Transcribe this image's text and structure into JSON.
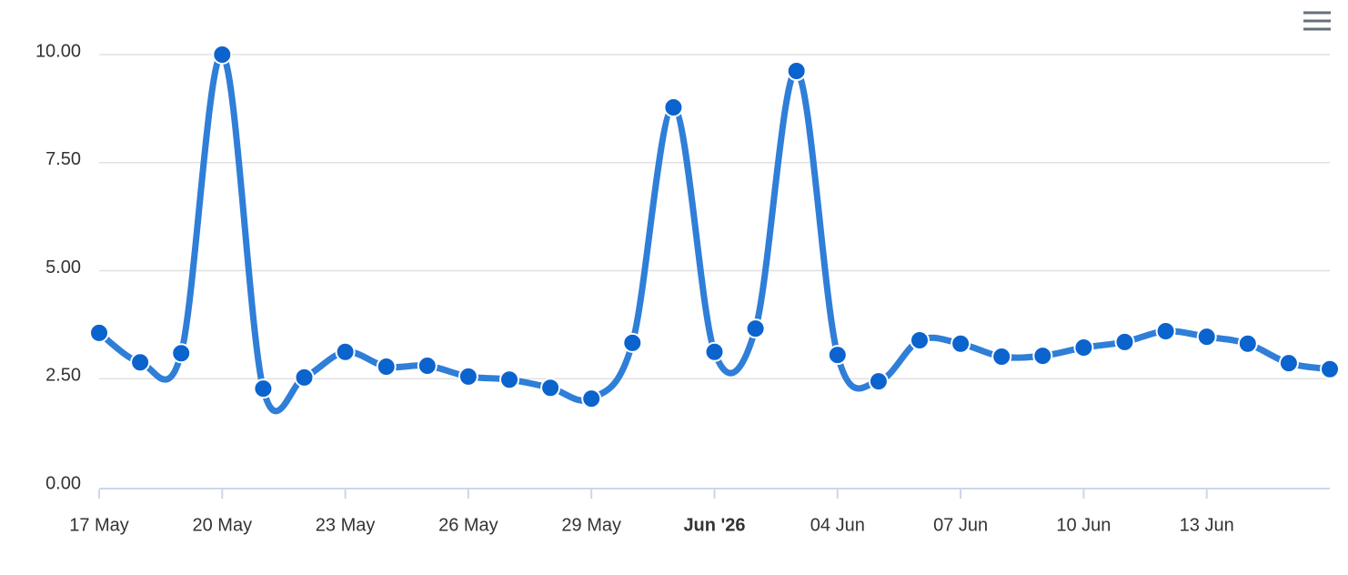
{
  "chart_data": {
    "type": "line",
    "x": [
      "2026-05-17",
      "2026-05-18",
      "2026-05-19",
      "2026-05-20",
      "2026-05-21",
      "2026-05-22",
      "2026-05-23",
      "2026-05-24",
      "2026-05-25",
      "2026-05-26",
      "2026-05-27",
      "2026-05-28",
      "2026-05-29",
      "2026-05-30",
      "2026-05-31",
      "2026-06-01",
      "2026-06-02",
      "2026-06-03",
      "2026-06-04",
      "2026-06-05",
      "2026-06-06",
      "2026-06-07",
      "2026-06-08",
      "2026-06-09",
      "2026-06-10",
      "2026-06-11",
      "2026-06-12",
      "2026-06-13",
      "2026-06-14",
      "2026-06-15",
      "2026-06-16"
    ],
    "series": [
      {
        "color": "#2f7ed8",
        "marker_color": "#0b63ce",
        "values": [
          3.56,
          2.88,
          3.09,
          10.0,
          2.27,
          2.53,
          3.12,
          2.78,
          2.8,
          2.55,
          2.48,
          2.29,
          2.04,
          3.33,
          8.78,
          3.12,
          3.66,
          9.62,
          3.05,
          2.44,
          3.39,
          3.31,
          3.01,
          3.03,
          3.22,
          3.35,
          3.6,
          3.47,
          3.31,
          2.86,
          2.72
        ]
      }
    ],
    "xlim": [
      "2026-05-17",
      "2026-06-16"
    ],
    "xticks": [
      {
        "value": "2026-05-17",
        "label": "17 May"
      },
      {
        "value": "2026-05-20",
        "label": "20 May"
      },
      {
        "value": "2026-05-23",
        "label": "23 May"
      },
      {
        "value": "2026-05-26",
        "label": "26 May"
      },
      {
        "value": "2026-05-29",
        "label": "29 May"
      },
      {
        "value": "2026-06-01",
        "label": "Jun '26",
        "bold": true
      },
      {
        "value": "2026-06-04",
        "label": "04 Jun"
      },
      {
        "value": "2026-06-07",
        "label": "07 Jun"
      },
      {
        "value": "2026-06-10",
        "label": "10 Jun"
      },
      {
        "value": "2026-06-13",
        "label": "13 Jun"
      }
    ],
    "ylim": [
      0,
      10
    ],
    "yticks": [
      {
        "value": 0,
        "label": "0.00"
      },
      {
        "value": 2.5,
        "label": "2.50"
      },
      {
        "value": 5,
        "label": "5.00"
      },
      {
        "value": 7.5,
        "label": "7.50"
      },
      {
        "value": 10,
        "label": "10.00"
      }
    ],
    "grid": true
  }
}
